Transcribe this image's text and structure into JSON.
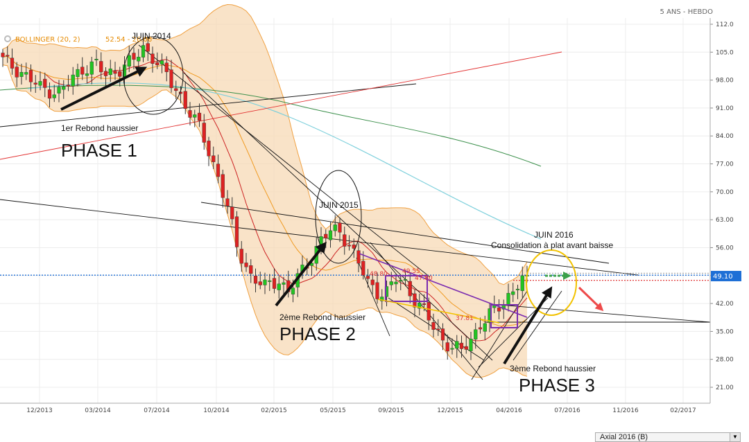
{
  "period_label": "5 ANS - HEBDO",
  "indicator_label": "BOLLINGER (20, 2)",
  "indicator_values": "52.54 - 26.06",
  "symbol_select": "Axial 2016 (B)",
  "chart_data": {
    "type": "candlestick",
    "y_ticks": [
      "112.0",
      "105.0",
      "98.00",
      "91.00",
      "84.00",
      "77.00",
      "70.00",
      "63.00",
      "56.00",
      "49.00",
      "42.00",
      "35.00",
      "28.00",
      "21.00"
    ],
    "ylim": [
      21,
      112
    ],
    "x_ticks": [
      "12/2013",
      "03/2014",
      "07/2014",
      "10/2014",
      "02/2015",
      "05/2015",
      "09/2015",
      "12/2015",
      "04/2016",
      "07/2016",
      "11/2016",
      "02/2017"
    ],
    "last_price": "49.10",
    "price_path": [
      [
        0,
        103
      ],
      [
        4,
        100
      ],
      [
        8,
        96
      ],
      [
        12,
        95
      ],
      [
        14,
        97
      ],
      [
        17,
        101
      ],
      [
        20,
        102
      ],
      [
        22,
        99
      ],
      [
        25,
        101
      ],
      [
        28,
        103
      ],
      [
        30,
        106
      ],
      [
        32,
        104
      ],
      [
        34,
        101
      ],
      [
        36,
        97
      ],
      [
        38,
        94
      ],
      [
        40,
        90
      ],
      [
        42,
        86
      ],
      [
        44,
        80
      ],
      [
        46,
        74
      ],
      [
        48,
        66
      ],
      [
        50,
        56
      ],
      [
        53,
        49
      ],
      [
        56,
        46
      ],
      [
        59,
        48
      ],
      [
        61,
        45
      ],
      [
        64,
        50
      ],
      [
        66,
        54
      ],
      [
        68,
        58
      ],
      [
        70,
        60
      ],
      [
        72,
        60
      ],
      [
        74,
        57
      ],
      [
        76,
        52
      ],
      [
        78,
        47
      ],
      [
        80,
        45
      ],
      [
        82,
        45
      ],
      [
        84,
        48
      ],
      [
        86,
        47
      ],
      [
        88,
        43
      ],
      [
        90,
        40
      ],
      [
        92,
        36
      ],
      [
        94,
        33
      ],
      [
        96,
        31
      ],
      [
        98,
        30
      ],
      [
        100,
        33
      ],
      [
        102,
        37
      ],
      [
        104,
        39
      ],
      [
        106,
        41
      ],
      [
        108,
        44
      ],
      [
        110,
        47
      ],
      [
        112,
        49.1
      ]
    ],
    "annotations": {
      "juin2014": "JUIN 2014",
      "juin2015": "JUIN 2015",
      "juin2016": "JUIN 2016",
      "consolidation": "Consolidation à plat avant baisse",
      "rebond1": "1er Rebond haussier",
      "rebond2": "2ème Rebond haussier",
      "rebond3": "3ème Rebond haussier",
      "phase1": "PHASE 1",
      "phase2": "PHASE 2",
      "phase3": "PHASE 3",
      "lvl1": "48.80",
      "lvl2": "49.55",
      "lvl3": "47.80",
      "lvl4": "37.81"
    },
    "colors": {
      "up": "#22c422",
      "down": "#dd2222",
      "band_fill": "#f7d9b5",
      "band_line": "#f0a040",
      "last_price": "#1e6fd6"
    }
  }
}
